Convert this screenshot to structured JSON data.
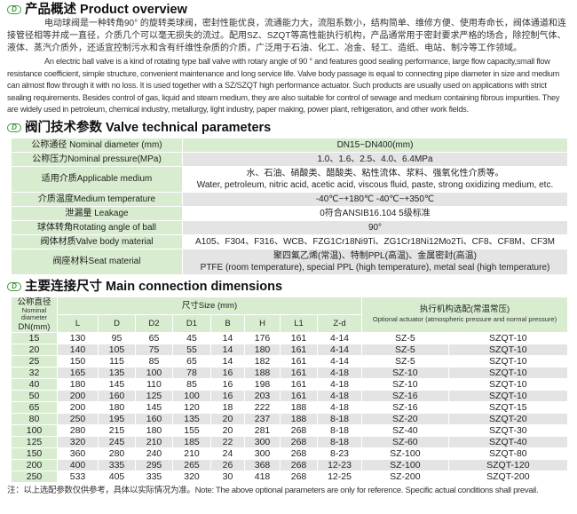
{
  "overview": {
    "title": "产品概述 Product overview",
    "cn": "电动球阀是一种转角90° 的旋转类球阀，密封性能优良，流通能力大，流阻系数小，结构简单、维修方便、使用寿命长，阀体通道和连接管径相等并成一直径，介质几个可以毫无损失的流过。配用SZ、SZQT等高性能执行机构，产品通常用于密封要求严格的场合，除控制气体、液体、蒸汽介质外，还适宜控制污水和含有纤维性杂质的介质，广泛用于石油、化工、冶金、轻工、造纸、电站、制冷等工作领域。",
    "en": "An electric ball valve is a kind of rotating type ball valve with rotary angle of 90 °  and features good sealing performance, large flow capacity,small flow resistance coefficient, simple structure, convenient maintenance and long service life. Valve body passage is equal to connecting pipe diameter in size and medium can almost flow through it with no loss. It is used together with a SZ/SZQT high performance actuator. Such products are usually used on applications with strict sealing requirements. Besides control of gas, liquid and steam medium, they are also suitable for control of sewage and medium containing fibrous impurities. They are widely used in petroleum, chemical industry, metallurgy, light industry, paper making, power plant, refrigeration, and other work fields."
  },
  "tech": {
    "title": "阀门技术参数 Valve technical parameters",
    "rows": [
      {
        "label": "公称通径 Nominal diameter (mm)",
        "value": "DN15~DN400(mm)"
      },
      {
        "label": "公称压力Nominal pressure(MPa)",
        "value": "1.0、1.6、2.5、4.0、6.4MPa"
      },
      {
        "label": "适用介质Applicable medium",
        "value": "水、石油、硝酸类、醋酸类、粘性流体、浆料、强氧化性介质等。",
        "value2": "Water, petroleum, nitric acid, acetic acid, viscous fluid, paste, strong oxidizing medium, etc."
      },
      {
        "label": "介质温度Medium temperature",
        "value": "-40℃~+180℃   -40℃~+350℃"
      },
      {
        "label": "泄漏量 Leakage",
        "value": "0符合ANSIB16.104 5级标准"
      },
      {
        "label": "球体转角Rotating angle of ball",
        "value": "90°"
      },
      {
        "label": "阀体材质Valve body material",
        "value": "A105、F304、F316、WCB、FZG1Cr18Ni9Ti、ZG1Cr18Ni12Mo2Ti、CF8、CF8M、CF3M"
      },
      {
        "label": "阀座材料Seat material",
        "value": "聚四氟乙烯(常温)、特制PPL(高温)、金属密封(高温)",
        "value2": "PTFE (room temperature), special PPL (high temperature), metal seal (high temperature)"
      }
    ]
  },
  "dims": {
    "title": "主要连接尺寸 Main connection dimensions",
    "dn_header": [
      "公称直径",
      "Nominal diameter",
      "DN(mm)"
    ],
    "size_header": "尺寸Size (mm)",
    "actuator_header": "执行机构选配(常温常压)",
    "actuator_header_en": "Optional actuator (atmospheric pressure and normal pressure)",
    "columns": [
      "L",
      "D",
      "D2",
      "D1",
      "B",
      "H",
      "L1",
      "Z-d"
    ],
    "rows": [
      [
        "15",
        "130",
        "95",
        "65",
        "45",
        "14",
        "176",
        "161",
        "4-14",
        "SZ-5",
        "SZQT-10"
      ],
      [
        "20",
        "140",
        "105",
        "75",
        "55",
        "14",
        "180",
        "161",
        "4-14",
        "SZ-5",
        "SZQT-10"
      ],
      [
        "25",
        "150",
        "115",
        "85",
        "65",
        "14",
        "182",
        "161",
        "4-14",
        "SZ-5",
        "SZQT-10"
      ],
      [
        "32",
        "165",
        "135",
        "100",
        "78",
        "16",
        "188",
        "161",
        "4-18",
        "SZ-10",
        "SZQT-10"
      ],
      [
        "40",
        "180",
        "145",
        "110",
        "85",
        "16",
        "198",
        "161",
        "4-18",
        "SZ-10",
        "SZQT-10"
      ],
      [
        "50",
        "200",
        "160",
        "125",
        "100",
        "16",
        "203",
        "161",
        "4-18",
        "SZ-16",
        "SZQT-10"
      ],
      [
        "65",
        "200",
        "180",
        "145",
        "120",
        "18",
        "222",
        "188",
        "4-18",
        "SZ-16",
        "SZQT-15"
      ],
      [
        "80",
        "250",
        "195",
        "160",
        "135",
        "20",
        "237",
        "188",
        "8-18",
        "SZ-20",
        "SZQT-20"
      ],
      [
        "100",
        "280",
        "215",
        "180",
        "155",
        "20",
        "281",
        "268",
        "8-18",
        "SZ-40",
        "SZQT-30"
      ],
      [
        "125",
        "320",
        "245",
        "210",
        "185",
        "22",
        "300",
        "268",
        "8-18",
        "SZ-60",
        "SZQT-40"
      ],
      [
        "150",
        "360",
        "280",
        "240",
        "210",
        "24",
        "300",
        "268",
        "8-23",
        "SZ-100",
        "SZQT-80"
      ],
      [
        "200",
        "400",
        "335",
        "295",
        "265",
        "26",
        "368",
        "268",
        "12-23",
        "SZ-100",
        "SZQT-120"
      ],
      [
        "250",
        "533",
        "405",
        "335",
        "320",
        "30",
        "418",
        "268",
        "12-25",
        "SZ-200",
        "SZQT-200"
      ]
    ],
    "note": "注：以上选配参数仅供参考，具体以实际情况为准。Note: The above optional parameters are only for reference. Specific actual conditions shall prevail."
  },
  "colors": {
    "accent": "#3a9a3a",
    "header_bg": "#d8ecd0",
    "stripe": "#e4e4e4"
  }
}
